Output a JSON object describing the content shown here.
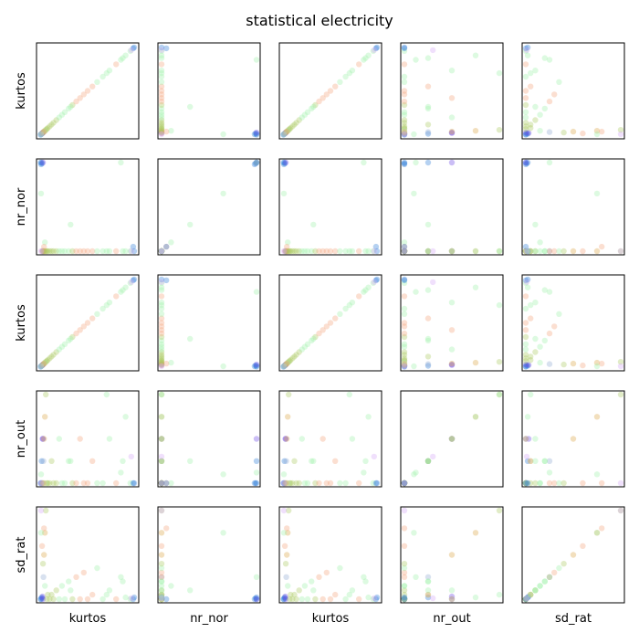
{
  "chart_data": {
    "type": "scatter",
    "layout": "pair-plot",
    "title": "statistical electricity",
    "variables": [
      "kurtos",
      "nr_nor",
      "kurtos",
      "nr_out",
      "sd_rat"
    ],
    "axis_ranges": {
      "kurtos": [
        0,
        10
      ],
      "nr_nor": [
        0,
        1
      ],
      "nr_out": [
        0,
        1
      ],
      "sd_rat": [
        0,
        1
      ]
    },
    "ticks": "hidden",
    "grid": false,
    "legend": "none",
    "marker_alpha": 0.35,
    "colors": {
      "blue": "#2b7bd8",
      "purple": "#6a46e6",
      "orange": "#f4a27c",
      "gold": "#d9a441",
      "olive": "#a9c85f",
      "green": "#9ef0a8",
      "lavender": "#d3a5f5",
      "teal": "#8fa8d0"
    },
    "points": [
      {
        "kurtos": 0.05,
        "nr_nor": 1.0,
        "nr_out": 0.0,
        "sd_rat": 0.0,
        "c": "blue"
      },
      {
        "kurtos": 0.1,
        "nr_nor": 0.98,
        "nr_out": 0.0,
        "sd_rat": 0.0,
        "c": "blue"
      },
      {
        "kurtos": 0.2,
        "nr_nor": 0.99,
        "nr_out": 0.0,
        "sd_rat": 0.01,
        "c": "blue"
      },
      {
        "kurtos": 0.15,
        "nr_nor": 1.0,
        "nr_out": 0.25,
        "sd_rat": 0.02,
        "c": "blue"
      },
      {
        "kurtos": 0.3,
        "nr_nor": 1.0,
        "nr_out": 0.5,
        "sd_rat": 0.0,
        "c": "purple"
      },
      {
        "kurtos": 0.25,
        "nr_nor": 0.0,
        "nr_out": 0.5,
        "sd_rat": 0.03,
        "c": "purple"
      },
      {
        "kurtos": 0.35,
        "nr_nor": 0.0,
        "nr_out": 0.25,
        "sd_rat": 0.25,
        "c": "teal"
      },
      {
        "kurtos": 0.4,
        "nr_nor": 0.0,
        "nr_out": 0.5,
        "sd_rat": 0.5,
        "c": "gold"
      },
      {
        "kurtos": 0.5,
        "nr_nor": 0.0,
        "nr_out": 0.75,
        "sd_rat": 0.75,
        "c": "gold"
      },
      {
        "kurtos": 0.6,
        "nr_nor": 0.0,
        "nr_out": 1.0,
        "sd_rat": 1.0,
        "c": "olive"
      },
      {
        "kurtos": 0.7,
        "nr_nor": 0.0,
        "nr_out": 0.0,
        "sd_rat": 0.0,
        "c": "olive"
      },
      {
        "kurtos": 0.8,
        "nr_nor": 0.0,
        "nr_out": 0.0,
        "sd_rat": 0.05,
        "c": "olive"
      },
      {
        "kurtos": 1.0,
        "nr_nor": 0.0,
        "nr_out": 0.0,
        "sd_rat": 0.0,
        "c": "olive"
      },
      {
        "kurtos": 1.2,
        "nr_nor": 0.0,
        "nr_out": 0.25,
        "sd_rat": 0.05,
        "c": "olive"
      },
      {
        "kurtos": 1.4,
        "nr_nor": 0.0,
        "nr_out": 0.0,
        "sd_rat": 0.0,
        "c": "olive"
      },
      {
        "kurtos": 1.7,
        "nr_nor": 0.0,
        "nr_out": 0.0,
        "sd_rat": 0.1,
        "c": "olive"
      },
      {
        "kurtos": 2.0,
        "nr_nor": 0.0,
        "nr_out": 0.5,
        "sd_rat": 0.0,
        "c": "green"
      },
      {
        "kurtos": 2.3,
        "nr_nor": 0.0,
        "nr_out": 0.0,
        "sd_rat": 0.15,
        "c": "green"
      },
      {
        "kurtos": 2.6,
        "nr_nor": 0.0,
        "nr_out": 0.0,
        "sd_rat": 0.0,
        "c": "green"
      },
      {
        "kurtos": 3.0,
        "nr_nor": 0.0,
        "nr_out": 0.25,
        "sd_rat": 0.2,
        "c": "green"
      },
      {
        "kurtos": 3.4,
        "nr_nor": 0.0,
        "nr_out": 0.0,
        "sd_rat": 0.0,
        "c": "olive"
      },
      {
        "kurtos": 3.8,
        "nr_nor": 0.0,
        "nr_out": 0.0,
        "sd_rat": 0.25,
        "c": "orange"
      },
      {
        "kurtos": 4.2,
        "nr_nor": 0.0,
        "nr_out": 0.5,
        "sd_rat": 0.0,
        "c": "orange"
      },
      {
        "kurtos": 4.6,
        "nr_nor": 0.0,
        "nr_out": 0.0,
        "sd_rat": 0.3,
        "c": "orange"
      },
      {
        "kurtos": 5.0,
        "nr_nor": 0.0,
        "nr_out": 0.0,
        "sd_rat": 0.0,
        "c": "orange"
      },
      {
        "kurtos": 5.5,
        "nr_nor": 0.0,
        "nr_out": 0.25,
        "sd_rat": 0.05,
        "c": "orange"
      },
      {
        "kurtos": 6.0,
        "nr_nor": 0.0,
        "nr_out": 0.0,
        "sd_rat": 0.35,
        "c": "green"
      },
      {
        "kurtos": 6.6,
        "nr_nor": 0.0,
        "nr_out": 0.0,
        "sd_rat": 0.0,
        "c": "green"
      },
      {
        "kurtos": 7.3,
        "nr_nor": 0.0,
        "nr_out": 0.5,
        "sd_rat": 0.1,
        "c": "green"
      },
      {
        "kurtos": 8.0,
        "nr_nor": 0.0,
        "nr_out": 0.0,
        "sd_rat": 0.0,
        "c": "orange"
      },
      {
        "kurtos": 8.7,
        "nr_nor": 0.0,
        "nr_out": 0.25,
        "sd_rat": 0.2,
        "c": "green"
      },
      {
        "kurtos": 9.5,
        "nr_nor": 0.0,
        "nr_out": 0.0,
        "sd_rat": 0.0,
        "c": "green"
      },
      {
        "kurtos": 0.2,
        "nr_nor": 0.0,
        "nr_out": 0.0,
        "sd_rat": 0.6,
        "c": "orange"
      },
      {
        "kurtos": 0.3,
        "nr_nor": 0.0,
        "nr_out": 0.0,
        "sd_rat": 0.4,
        "c": "olive"
      },
      {
        "kurtos": 0.5,
        "nr_nor": 0.1,
        "nr_out": 0.0,
        "sd_rat": 0.15,
        "c": "green"
      },
      {
        "kurtos": 0.4,
        "nr_nor": 0.05,
        "nr_out": 0.0,
        "sd_rat": 0.8,
        "c": "orange"
      },
      {
        "kurtos": 3.2,
        "nr_nor": 0.3,
        "nr_out": 0.25,
        "sd_rat": 0.1,
        "c": "green"
      },
      {
        "kurtos": 9.8,
        "nr_nor": 0.05,
        "nr_out": 0.0,
        "sd_rat": 0.0,
        "c": "blue"
      },
      {
        "kurtos": 9.9,
        "nr_nor": 0.0,
        "nr_out": 0.0,
        "sd_rat": 0.02,
        "c": "blue"
      },
      {
        "kurtos": 7.0,
        "nr_nor": 0.0,
        "nr_out": 1.0,
        "sd_rat": 0.05,
        "c": "green"
      },
      {
        "kurtos": 9.0,
        "nr_nor": 0.0,
        "nr_out": 0.75,
        "sd_rat": 0.02,
        "c": "green"
      },
      {
        "kurtos": 8.5,
        "nr_nor": 1.0,
        "nr_out": 0.12,
        "sd_rat": 0.25,
        "c": "green"
      },
      {
        "kurtos": 9.6,
        "nr_nor": 0.0,
        "nr_out": 0.3,
        "sd_rat": 0.01,
        "c": "lavender"
      },
      {
        "kurtos": 0.1,
        "nr_nor": 0.0,
        "nr_out": 0.0,
        "sd_rat": 1.0,
        "c": "lavender"
      },
      {
        "kurtos": 0.1,
        "nr_nor": 0.65,
        "nr_out": 0.1,
        "sd_rat": 0.75,
        "c": "green"
      }
    ]
  }
}
